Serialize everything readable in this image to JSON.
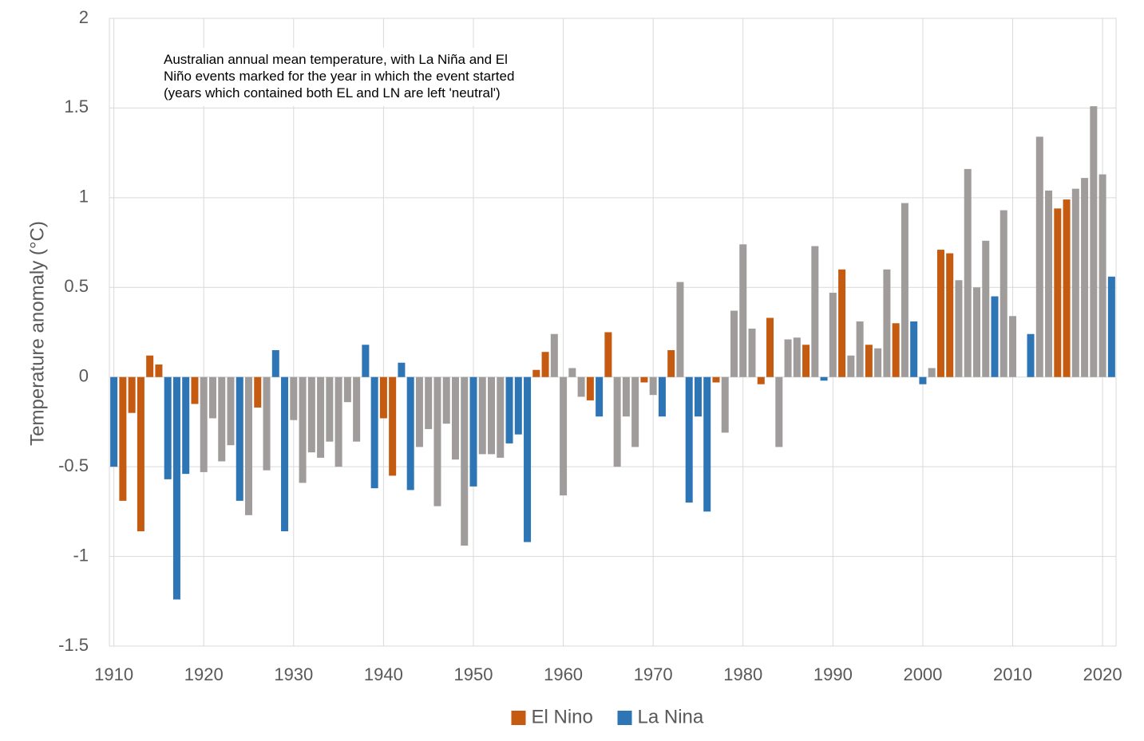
{
  "chart_data": {
    "type": "bar",
    "annotation": "Australian annual mean temperature, with La Niña and El Niño events marked for the year in which the event started (years which contained both EL and LN are left 'neutral')",
    "y_label": "Temperature anomaly (°C)",
    "x": [
      1910,
      1911,
      1912,
      1913,
      1914,
      1915,
      1916,
      1917,
      1918,
      1919,
      1920,
      1921,
      1922,
      1923,
      1924,
      1925,
      1926,
      1927,
      1928,
      1929,
      1930,
      1931,
      1932,
      1933,
      1934,
      1935,
      1936,
      1937,
      1938,
      1939,
      1940,
      1941,
      1942,
      1943,
      1944,
      1945,
      1946,
      1947,
      1948,
      1949,
      1950,
      1951,
      1952,
      1953,
      1954,
      1955,
      1956,
      1957,
      1958,
      1959,
      1960,
      1961,
      1962,
      1963,
      1964,
      1965,
      1966,
      1967,
      1968,
      1969,
      1970,
      1971,
      1972,
      1973,
      1974,
      1975,
      1976,
      1977,
      1978,
      1979,
      1980,
      1981,
      1982,
      1983,
      1984,
      1985,
      1986,
      1987,
      1988,
      1989,
      1990,
      1991,
      1992,
      1993,
      1994,
      1995,
      1996,
      1997,
      1998,
      1999,
      2000,
      2001,
      2002,
      2003,
      2004,
      2005,
      2006,
      2007,
      2008,
      2009,
      2010,
      2011,
      2012,
      2013,
      2014,
      2015,
      2016,
      2017,
      2018,
      2019,
      2020,
      2021
    ],
    "series": [
      {
        "name": "El Nino",
        "color": "#c55a11",
        "values": [
          null,
          -0.69,
          -0.2,
          -0.86,
          0.12,
          0.07,
          null,
          null,
          null,
          -0.15,
          null,
          null,
          null,
          null,
          null,
          null,
          -0.17,
          null,
          null,
          null,
          null,
          null,
          null,
          null,
          null,
          null,
          null,
          null,
          null,
          null,
          -0.23,
          -0.55,
          null,
          null,
          null,
          null,
          null,
          null,
          null,
          null,
          null,
          null,
          null,
          null,
          null,
          null,
          null,
          0.04,
          0.14,
          null,
          null,
          null,
          null,
          -0.13,
          null,
          0.25,
          null,
          null,
          null,
          -0.03,
          null,
          null,
          0.15,
          null,
          null,
          null,
          null,
          -0.03,
          null,
          null,
          null,
          null,
          -0.04,
          0.33,
          null,
          null,
          null,
          0.18,
          null,
          null,
          null,
          0.6,
          null,
          null,
          0.18,
          null,
          null,
          0.3,
          null,
          null,
          null,
          null,
          0.71,
          0.69,
          null,
          null,
          null,
          null,
          null,
          null,
          null,
          null,
          null,
          null,
          null,
          0.94,
          0.99,
          null,
          null,
          null,
          null,
          null
        ]
      },
      {
        "name": "La Nina",
        "color": "#2e75b6",
        "values": [
          -0.5,
          null,
          null,
          null,
          null,
          null,
          -0.57,
          -1.24,
          -0.54,
          null,
          null,
          null,
          null,
          null,
          -0.69,
          null,
          null,
          null,
          0.15,
          -0.86,
          null,
          null,
          null,
          null,
          null,
          null,
          null,
          null,
          0.18,
          -0.62,
          null,
          null,
          0.08,
          -0.63,
          null,
          null,
          null,
          null,
          null,
          null,
          -0.61,
          null,
          null,
          null,
          -0.37,
          -0.32,
          -0.92,
          null,
          null,
          null,
          null,
          null,
          null,
          null,
          -0.22,
          null,
          null,
          null,
          null,
          null,
          null,
          -0.22,
          null,
          null,
          -0.7,
          -0.22,
          -0.75,
          null,
          null,
          null,
          null,
          null,
          null,
          null,
          null,
          null,
          null,
          null,
          null,
          -0.02,
          null,
          null,
          null,
          null,
          null,
          null,
          null,
          null,
          null,
          0.31,
          -0.04,
          null,
          null,
          null,
          null,
          null,
          null,
          null,
          0.45,
          null,
          null,
          null,
          0.24,
          null,
          null,
          null,
          null,
          null,
          null,
          null,
          null,
          0.56
        ]
      },
      {
        "color": "#a09c9c",
        "values": [
          null,
          null,
          null,
          null,
          null,
          null,
          null,
          null,
          null,
          null,
          -0.53,
          -0.23,
          -0.47,
          -0.38,
          null,
          -0.77,
          null,
          -0.52,
          null,
          null,
          -0.24,
          -0.59,
          -0.42,
          -0.45,
          -0.36,
          -0.5,
          -0.14,
          -0.36,
          null,
          null,
          null,
          null,
          null,
          null,
          -0.39,
          -0.29,
          -0.72,
          -0.26,
          -0.46,
          -0.94,
          null,
          -0.43,
          -0.43,
          -0.45,
          null,
          null,
          null,
          null,
          null,
          0.24,
          -0.66,
          0.05,
          -0.11,
          null,
          null,
          null,
          -0.5,
          -0.22,
          -0.39,
          null,
          -0.1,
          null,
          null,
          0.53,
          null,
          null,
          null,
          null,
          -0.31,
          0.37,
          0.74,
          0.27,
          null,
          null,
          -0.39,
          0.21,
          0.22,
          null,
          0.73,
          null,
          0.47,
          null,
          0.12,
          0.31,
          null,
          0.16,
          0.6,
          null,
          0.97,
          null,
          null,
          0.05,
          null,
          null,
          0.54,
          1.16,
          0.5,
          0.76,
          null,
          0.93,
          0.34,
          null,
          null,
          1.34,
          1.04,
          null,
          null,
          1.05,
          1.11,
          1.51,
          1.13,
          null
        ]
      }
    ],
    "xlim": [
      1909.5,
      2021.5
    ],
    "xticks": [
      1910,
      1920,
      1930,
      1940,
      1950,
      1960,
      1970,
      1980,
      1990,
      2000,
      2010,
      2020
    ],
    "ylim": [
      -1.5,
      2
    ],
    "yticks": [
      2,
      1.5,
      1,
      0.5,
      0,
      -0.5,
      -1,
      -1.5
    ],
    "grid": true,
    "legend": "bottom"
  }
}
